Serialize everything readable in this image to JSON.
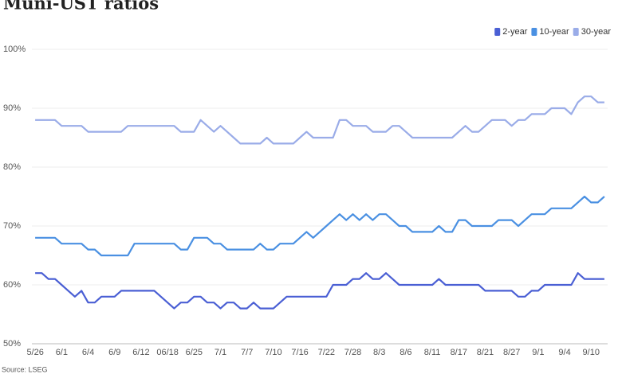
{
  "chart_data": {
    "type": "line",
    "title": "Muni-UST ratios",
    "source": "Source: LSEG",
    "categories": [
      "5/26",
      null,
      null,
      null,
      "6/1",
      null,
      null,
      null,
      "6/4",
      null,
      null,
      null,
      "6/9",
      null,
      null,
      null,
      "6/12",
      null,
      null,
      null,
      "06/18",
      null,
      null,
      null,
      "6/25",
      null,
      null,
      null,
      "7/1",
      null,
      null,
      null,
      "7/7",
      null,
      null,
      null,
      "7/10",
      null,
      null,
      null,
      "7/16",
      null,
      null,
      null,
      "7/22",
      null,
      null,
      null,
      "7/28",
      null,
      null,
      null,
      "8/3",
      null,
      null,
      null,
      "8/6",
      null,
      null,
      null,
      "8/11",
      null,
      null,
      null,
      "8/17",
      null,
      null,
      null,
      "8/21",
      null,
      null,
      null,
      "8/27",
      null,
      null,
      null,
      "9/1",
      null,
      null,
      null,
      "9/4",
      null,
      null,
      null,
      "9/10",
      null,
      null
    ],
    "series": [
      {
        "name": "2-year",
        "color": "#4a5fd4",
        "values": [
          62,
          62,
          61,
          61,
          60,
          59,
          58,
          59,
          57,
          57,
          58,
          58,
          58,
          59,
          59,
          59,
          59,
          59,
          59,
          58,
          57,
          56,
          57,
          57,
          58,
          58,
          57,
          57,
          56,
          57,
          57,
          56,
          56,
          57,
          56,
          56,
          56,
          57,
          58,
          58,
          58,
          58,
          58,
          58,
          58,
          60,
          60,
          60,
          61,
          61,
          62,
          61,
          61,
          62,
          61,
          60,
          60,
          60,
          60,
          60,
          60,
          61,
          60,
          60,
          60,
          60,
          60,
          60,
          59,
          59,
          59,
          59,
          59,
          58,
          58,
          59,
          59,
          60,
          60,
          60,
          60,
          60,
          62,
          61,
          61,
          61,
          61
        ]
      },
      {
        "name": "10-year",
        "color": "#4a90e2",
        "values": [
          68,
          68,
          68,
          68,
          67,
          67,
          67,
          67,
          66,
          66,
          65,
          65,
          65,
          65,
          65,
          67,
          67,
          67,
          67,
          67,
          67,
          67,
          66,
          66,
          68,
          68,
          68,
          67,
          67,
          66,
          66,
          66,
          66,
          66,
          67,
          66,
          66,
          67,
          67,
          67,
          68,
          69,
          68,
          69,
          70,
          71,
          72,
          71,
          72,
          71,
          72,
          71,
          72,
          72,
          71,
          70,
          70,
          69,
          69,
          69,
          69,
          70,
          69,
          69,
          71,
          71,
          70,
          70,
          70,
          70,
          71,
          71,
          71,
          70,
          71,
          72,
          72,
          72,
          73,
          73,
          73,
          73,
          74,
          75,
          74,
          74,
          75
        ]
      },
      {
        "name": "30-year",
        "color": "#9aace8",
        "values": [
          88,
          88,
          88,
          88,
          87,
          87,
          87,
          87,
          86,
          86,
          86,
          86,
          86,
          86,
          87,
          87,
          87,
          87,
          87,
          87,
          87,
          87,
          86,
          86,
          86,
          88,
          87,
          86,
          87,
          86,
          85,
          84,
          84,
          84,
          84,
          85,
          84,
          84,
          84,
          84,
          85,
          86,
          85,
          85,
          85,
          85,
          88,
          88,
          87,
          87,
          87,
          86,
          86,
          86,
          87,
          87,
          86,
          85,
          85,
          85,
          85,
          85,
          85,
          85,
          86,
          87,
          86,
          86,
          87,
          88,
          88,
          88,
          87,
          88,
          88,
          89,
          89,
          89,
          90,
          90,
          90,
          89,
          91,
          92,
          92,
          91,
          91
        ]
      }
    ],
    "ylim": [
      50,
      100
    ],
    "yticks": [
      {
        "value": 50,
        "label": "50%"
      },
      {
        "value": 60,
        "label": "60%"
      },
      {
        "value": 70,
        "label": "70%"
      },
      {
        "value": 80,
        "label": "80%"
      },
      {
        "value": 90,
        "label": "90%"
      },
      {
        "value": 100,
        "label": "100%"
      }
    ],
    "grid": true,
    "legend": "top-right"
  }
}
